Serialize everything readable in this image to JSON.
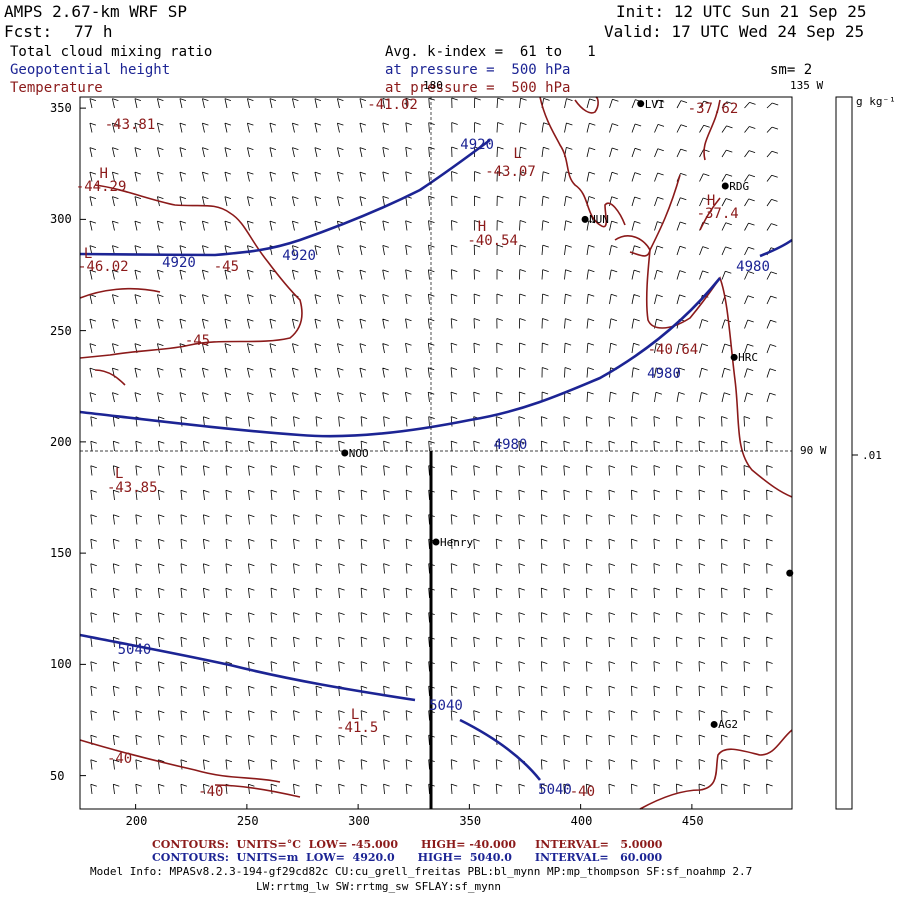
{
  "header": {
    "model": "AMPS 2.67-km WRF SP",
    "forecast_label": "Fcst:",
    "forecast_hours": "77 h",
    "init": "Init: 12 UTC Sun 21 Sep 25",
    "valid": "Valid: 17 UTC Wed 24 Sep 25",
    "field_black": "Total cloud mixing ratio",
    "field_blue": "Geopotential height",
    "field_red": "Temperature",
    "avg_line": "Avg. k-index =  61 to   1",
    "pressure_blue": "at pressure =  500 hPa",
    "pressure_red": "at pressure =  500 hPa",
    "smoothing": "sm= 2"
  },
  "colorbar": {
    "unit": "g kg⁻¹",
    "tick": ".01"
  },
  "grid_lines": {
    "lon_top": "180",
    "lon_corner": "135 W",
    "lat_right": "90 W"
  },
  "axes": {
    "x_ticks": [
      "200",
      "250",
      "300",
      "350",
      "400",
      "450"
    ],
    "y_ticks": [
      "350",
      "300",
      "250",
      "200",
      "150",
      "100",
      "50"
    ]
  },
  "stations": [
    {
      "name": "LVI",
      "x": 427,
      "y": 352
    },
    {
      "name": "RDG",
      "x": 465,
      "y": 315
    },
    {
      "name": "NUN",
      "x": 402,
      "y": 300
    },
    {
      "name": "HRC",
      "x": 469,
      "y": 238
    },
    {
      "name": "NOO",
      "x": 294,
      "y": 195
    },
    {
      "name": "Henry",
      "x": 335,
      "y": 155
    },
    {
      "name": "AG2",
      "x": 460,
      "y": 73
    },
    {
      "name": "",
      "x": 494,
      "y": 141
    }
  ],
  "height_labels": [
    {
      "text": "4920",
      "x": 354,
      "y": 333
    },
    {
      "text": "4920",
      "x": 274,
      "y": 283
    },
    {
      "text": "4920",
      "x": 220,
      "y": 280
    },
    {
      "text": "4980",
      "x": 478,
      "y": 278
    },
    {
      "text": "4980",
      "x": 438,
      "y": 230
    },
    {
      "text": "4980",
      "x": 369,
      "y": 198
    },
    {
      "text": "5040",
      "x": 200,
      "y": 106
    },
    {
      "text": "5040",
      "x": 340,
      "y": 81
    },
    {
      "text": "5040",
      "x": 389,
      "y": 43
    }
  ],
  "temp_labels": [
    {
      "text": "-43.81",
      "x": 196,
      "y": 342
    },
    {
      "text": "-44.29",
      "x": 183,
      "y": 314
    },
    {
      "text": "-46.02",
      "x": 184,
      "y": 278
    },
    {
      "text": "-45",
      "x": 245,
      "y": 278
    },
    {
      "text": "-45",
      "x": 232,
      "y": 245
    },
    {
      "text": "-41.02",
      "x": 314,
      "y": 351
    },
    {
      "text": "-43.07",
      "x": 367,
      "y": 321
    },
    {
      "text": "-40.54",
      "x": 359,
      "y": 290
    },
    {
      "text": "-37.62",
      "x": 458,
      "y": 349
    },
    {
      "text": "-37.4",
      "x": 462,
      "y": 302
    },
    {
      "text": "-40.64",
      "x": 440,
      "y": 241
    },
    {
      "text": "-43.85",
      "x": 197,
      "y": 179
    },
    {
      "text": "-41.5",
      "x": 300,
      "y": 71
    },
    {
      "text": "-40",
      "x": 197,
      "y": 57
    },
    {
      "text": "-40",
      "x": 238,
      "y": 42
    },
    {
      "text": "-40",
      "x": 405,
      "y": 42
    }
  ],
  "extrema_markers": [
    {
      "text": "H",
      "x": 186,
      "y": 320
    },
    {
      "text": "L",
      "x": 179,
      "y": 284
    },
    {
      "text": "L",
      "x": 372,
      "y": 329
    },
    {
      "text": "H",
      "x": 356,
      "y": 296
    },
    {
      "text": "H",
      "x": 459,
      "y": 308
    },
    {
      "text": "L",
      "x": 193,
      "y": 185
    },
    {
      "text": "L",
      "x": 299,
      "y": 77
    }
  ],
  "legend": {
    "line1": "CONTOURS:  UNITS=°C  LOW= -45.000      HIGH= -40.000     INTERVAL=   5.0000",
    "line2": "CONTOURS:  UNITS=m  LOW=  4920.0      HIGH=  5040.0      INTERVAL=   60.000",
    "model_info_1": "Model Info: MPASv8.2.3-194-gf29cd82c CU:cu_grell_freitas PBL:bl_mynn MP:mp_thompson SF:sf_noahmp 2.7",
    "model_info_2": "LW:rrtmg_lw SW:rrtmg_sw SFLAY:sf_mynn"
  },
  "colors": {
    "height": "#1c2494",
    "temperature": "#8b1a1a",
    "barbs": "#000000"
  }
}
